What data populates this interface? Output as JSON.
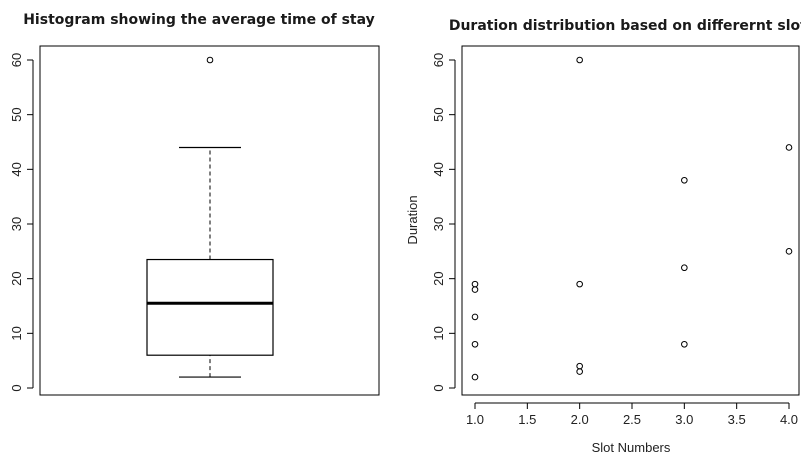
{
  "chart_data": [
    {
      "type": "box",
      "title": "Histogram showing the average time of stay",
      "xlabel": "",
      "ylabel": "",
      "ylim": [
        0,
        62
      ],
      "yticks": [
        0,
        10,
        20,
        30,
        40,
        50,
        60
      ],
      "box": {
        "whisker_low": 2,
        "q1": 6,
        "median": 15.5,
        "q3": 23.5,
        "whisker_high": 44
      },
      "outliers": [
        60
      ]
    },
    {
      "type": "scatter",
      "title": "Duration distribution based on differernt slots",
      "xlabel": "Slot Numbers",
      "ylabel": "Duration",
      "xlim": [
        1,
        4
      ],
      "ylim": [
        0,
        62
      ],
      "xticks": [
        1.0,
        1.5,
        2.0,
        2.5,
        3.0,
        3.5,
        4.0
      ],
      "xtick_labels": [
        "1.0",
        "1.5",
        "2.0",
        "2.5",
        "3.0",
        "3.5",
        "4.0"
      ],
      "yticks": [
        0,
        10,
        20,
        30,
        40,
        50,
        60
      ],
      "points": [
        {
          "x": 1,
          "y": 2
        },
        {
          "x": 1,
          "y": 8
        },
        {
          "x": 1,
          "y": 13
        },
        {
          "x": 1,
          "y": 18
        },
        {
          "x": 1,
          "y": 19
        },
        {
          "x": 2,
          "y": 3
        },
        {
          "x": 2,
          "y": 4
        },
        {
          "x": 2,
          "y": 19
        },
        {
          "x": 2,
          "y": 60
        },
        {
          "x": 3,
          "y": 8
        },
        {
          "x": 3,
          "y": 22
        },
        {
          "x": 3,
          "y": 38
        },
        {
          "x": 4,
          "y": 25
        },
        {
          "x": 4,
          "y": 44
        }
      ]
    }
  ]
}
